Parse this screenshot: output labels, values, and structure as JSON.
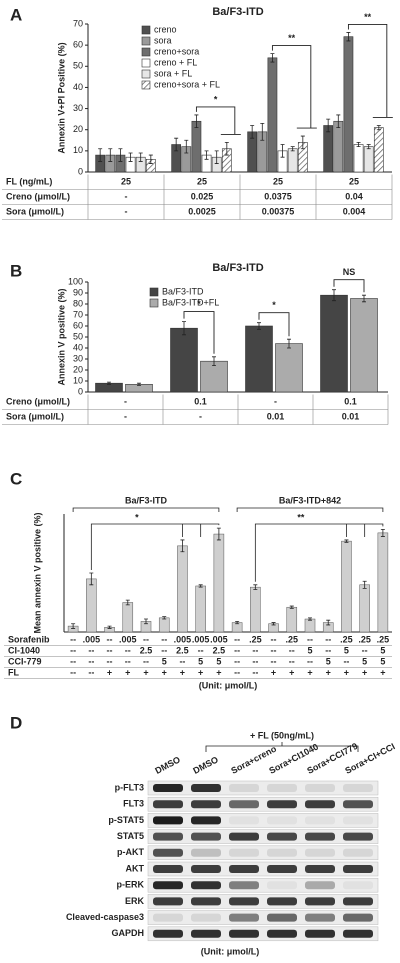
{
  "chart_data": [
    {
      "panel": "A",
      "type": "bar",
      "title": "Ba/F3-ITD",
      "ylabel": "Annexin V+PI Positive (%)",
      "ylim": [
        0,
        70
      ],
      "yticks": [
        0,
        10,
        20,
        30,
        40,
        50,
        60,
        70
      ],
      "series": [
        {
          "name": "creno",
          "color": "#505050",
          "values": [
            8,
            13,
            19,
            22
          ],
          "errors": [
            3,
            3,
            3,
            3
          ]
        },
        {
          "name": "sora",
          "color": "#9a9a9a",
          "values": [
            8,
            12,
            19,
            24
          ],
          "errors": [
            3,
            3,
            4,
            3
          ]
        },
        {
          "name": "creno+sora",
          "color": "#6e6e6e",
          "values": [
            8,
            24,
            54,
            64
          ],
          "errors": [
            3,
            3,
            2,
            2
          ]
        },
        {
          "name": "creno + FL",
          "color": "#ffffff",
          "values": [
            7,
            8,
            10,
            13
          ],
          "errors": [
            2,
            2,
            3,
            1
          ]
        },
        {
          "name": "sora + FL",
          "color": "#e6e6e6",
          "values": [
            7,
            7,
            11,
            12
          ],
          "errors": [
            2,
            3,
            1,
            1
          ]
        },
        {
          "name": "creno+sora + FL",
          "color": "#ffffff",
          "pattern": "hatch",
          "values": [
            6,
            11,
            14,
            21
          ],
          "errors": [
            2,
            3,
            3,
            1
          ]
        }
      ],
      "annotations": [
        "*",
        "**",
        "**"
      ],
      "table": [
        {
          "label": "FL (ng/mL)",
          "cells": [
            "25",
            "25",
            "25",
            "25"
          ]
        },
        {
          "label": "Creno (μmol/L)",
          "cells": [
            "-",
            "0.025",
            "0.0375",
            "0.04"
          ]
        },
        {
          "label": "Sora (μmol/L)",
          "cells": [
            "-",
            "0.0025",
            "0.00375",
            "0.004"
          ]
        }
      ]
    },
    {
      "panel": "B",
      "type": "bar",
      "title": "Ba/F3-ITD",
      "ylabel": "Annexin V positive (%)",
      "ylim": [
        0,
        100
      ],
      "yticks": [
        0,
        10,
        20,
        30,
        40,
        50,
        60,
        70,
        80,
        90,
        100
      ],
      "series": [
        {
          "name": "Ba/F3-ITD",
          "color": "#454545",
          "values": [
            8,
            58,
            60,
            88
          ],
          "errors": [
            1,
            6,
            3,
            5
          ]
        },
        {
          "name": "Ba/F3-ITD+FL",
          "color": "#ababab",
          "values": [
            7,
            28,
            44,
            85
          ],
          "errors": [
            1,
            4,
            4,
            3
          ]
        }
      ],
      "annotations": [
        "*",
        "*",
        "NS"
      ],
      "table": [
        {
          "label": "Creno (μmol/L)",
          "cells": [
            "-",
            "0.1",
            "-",
            "0.1"
          ]
        },
        {
          "label": "Sora (μmol/L)",
          "cells": [
            "-",
            "-",
            "0.01",
            "0.01"
          ]
        }
      ]
    },
    {
      "panel": "C",
      "type": "bar",
      "ylabel": "Mean annexin V positive (%)",
      "ylim": [
        0,
        100
      ],
      "groups": [
        "Ba/F3-ITD",
        "Ba/F3-ITD+842"
      ],
      "color": "#cfcfcf",
      "values": [
        5,
        45,
        4,
        25,
        9,
        12,
        73,
        39,
        83,
        8,
        38,
        7,
        21,
        11,
        8,
        77,
        40,
        84
      ],
      "errors": [
        2,
        5,
        1,
        2,
        2,
        1,
        5,
        1,
        5,
        1,
        2,
        1,
        1,
        1,
        2,
        1,
        3,
        3
      ],
      "annotations": [
        "*",
        "**"
      ],
      "table": [
        {
          "label": "Sorafenib",
          "cells": [
            "--",
            ".005",
            "--",
            ".005",
            "--",
            "--",
            ".005",
            ".005",
            ".005",
            "--",
            ".25",
            "--",
            ".25",
            "--",
            "--",
            ".25",
            ".25",
            ".25"
          ]
        },
        {
          "label": "CI-1040",
          "cells": [
            "--",
            "--",
            "--",
            "--",
            "2.5",
            "--",
            "2.5",
            "--",
            "2.5",
            "--",
            "--",
            "--",
            "--",
            "5",
            "--",
            "5",
            "--",
            "5"
          ]
        },
        {
          "label": "CCI-779",
          "cells": [
            "--",
            "--",
            "--",
            "--",
            "--",
            "5",
            "--",
            "5",
            "5",
            "--",
            "--",
            "--",
            "--",
            "--",
            "5",
            "--",
            "5",
            "5"
          ]
        },
        {
          "label": "FL",
          "cells": [
            "--",
            "--",
            "+",
            "+",
            "+",
            "+",
            "+",
            "+",
            "+",
            "--",
            "--",
            "+",
            "+",
            "+",
            "+",
            "+",
            "+",
            "+"
          ]
        }
      ],
      "unit": "(Unit: μmol/L)"
    }
  ],
  "blot": {
    "panel": "D",
    "treatment": "+ FL (50ng/mL)",
    "lanes": [
      "DMSO",
      "DMSO",
      "Sora+creno",
      "Sora+CI1040",
      "Sora+CCI779",
      "Sora+CI+CCI"
    ],
    "rows": [
      "p-FLT3",
      "FLT3",
      "p-STAT5",
      "STAT5",
      "p-AKT",
      "AKT",
      "p-ERK",
      "ERK",
      "Cleaved-caspase3",
      "GAPDH"
    ],
    "unit": "(Unit: μmol/L)"
  }
}
